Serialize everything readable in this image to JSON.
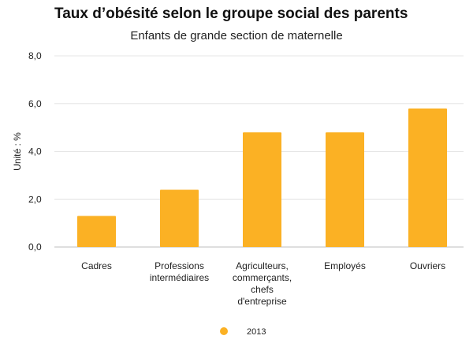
{
  "chart_data": {
    "type": "bar",
    "title": "Taux d’obésité selon le groupe social des parents",
    "subtitle": "Enfants de grande section de maternelle",
    "ylabel": "Unité : %",
    "xlabel": "",
    "ylim": [
      0,
      8
    ],
    "yticks": [
      "0,0",
      "2,0",
      "4,0",
      "6,0",
      "8,0"
    ],
    "ytick_values": [
      0,
      2,
      4,
      6,
      8
    ],
    "categories": [
      [
        "Cadres"
      ],
      [
        "Professions",
        "intermédiaires"
      ],
      [
        "Agriculteurs,",
        "commerçants,",
        "chefs",
        "d'entreprise"
      ],
      [
        "Employés"
      ],
      [
        "Ouvriers"
      ]
    ],
    "series": [
      {
        "name": "2013",
        "values": [
          1.3,
          2.4,
          4.8,
          4.8,
          5.8
        ],
        "color": "#fbb124"
      }
    ],
    "grid": true,
    "legend_position": "bottom-center"
  }
}
